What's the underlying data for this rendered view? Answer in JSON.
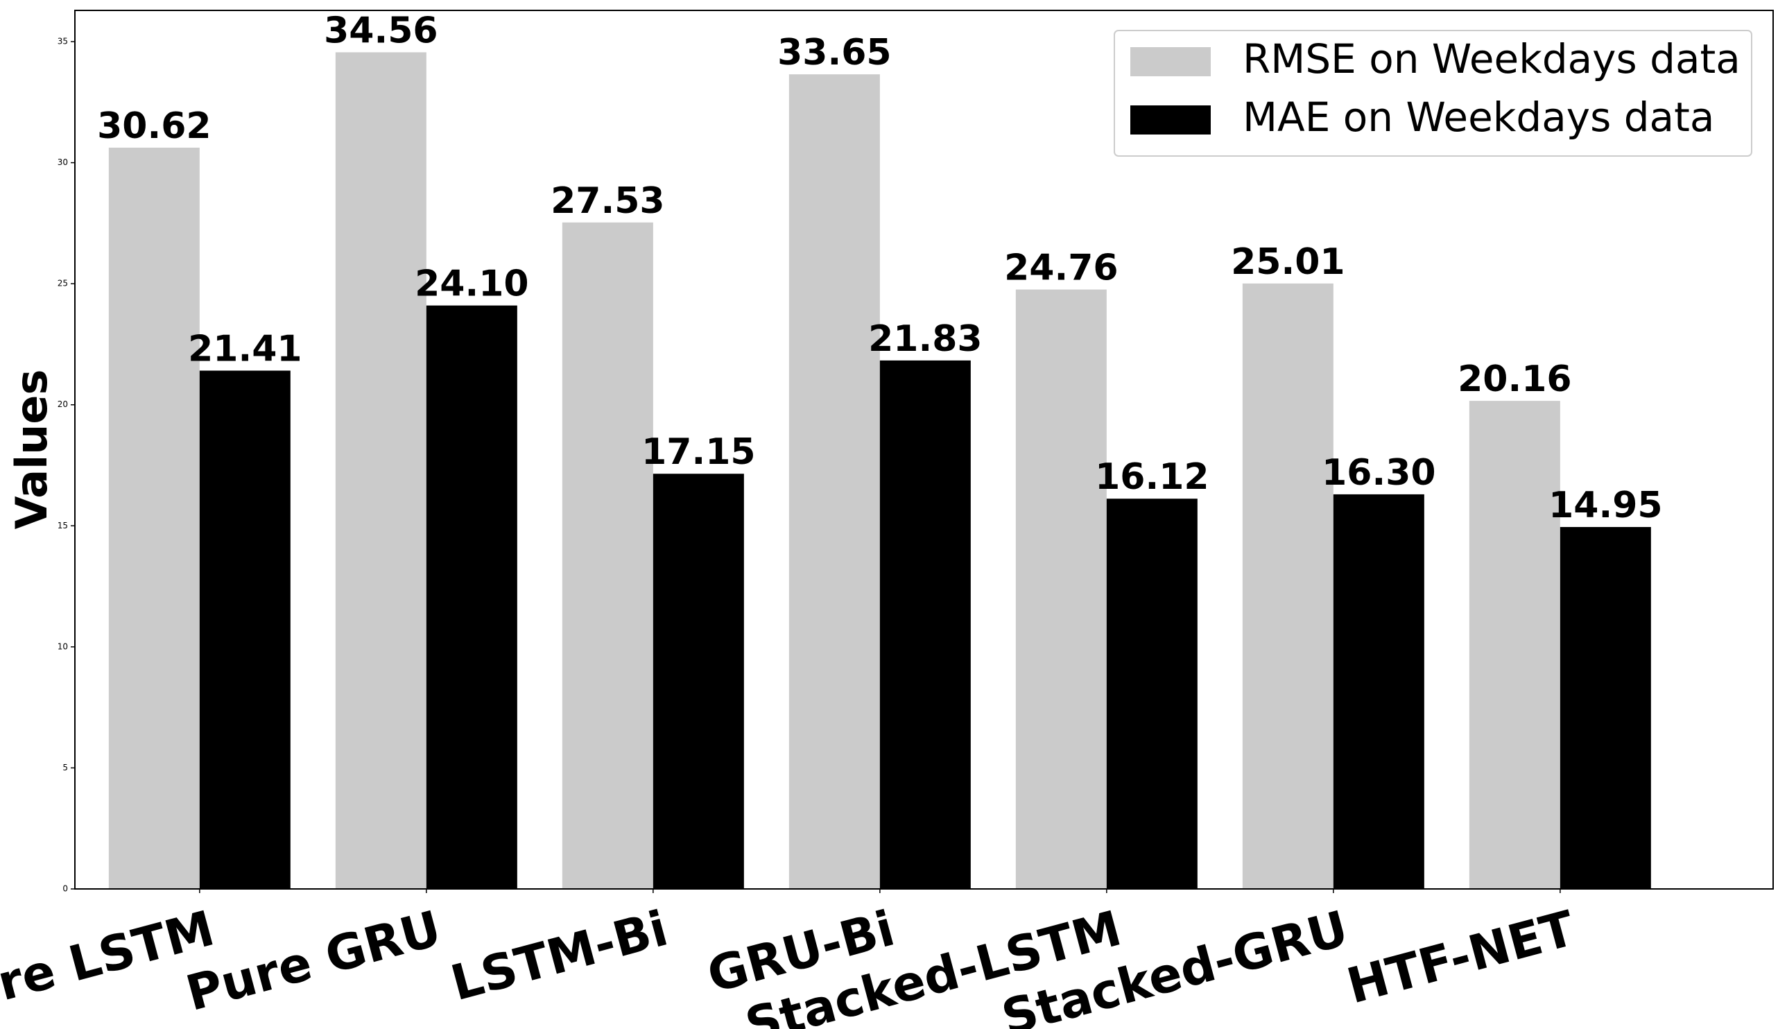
{
  "chart_data": {
    "type": "bar",
    "y_label": "Values",
    "categories": [
      "Pure LSTM",
      "Pure GRU",
      "LSTM-Bi",
      "GRU-Bi",
      "Stacked-LSTM",
      "Stacked-GRU",
      "HTF-NET"
    ],
    "series": [
      {
        "name": "RMSE on Weekdays data",
        "color": "#cbcbcb",
        "values": [
          30.62,
          34.56,
          27.53,
          33.65,
          24.76,
          25.01,
          20.16
        ],
        "value_labels": [
          "30.62",
          "34.56",
          "27.53",
          "33.65",
          "24.76",
          "25.01",
          "20.16"
        ]
      },
      {
        "name": "MAE on Weekdays data",
        "color": "#000000",
        "values": [
          21.41,
          24.1,
          17.15,
          21.83,
          16.12,
          16.3,
          14.95
        ],
        "value_labels": [
          "21.41",
          "24.10",
          "17.15",
          "21.83",
          "16.12",
          "16.30",
          "14.95"
        ]
      }
    ],
    "ylim": [
      0,
      36.29
    ],
    "yticks": [
      0,
      5,
      10,
      15,
      20,
      25,
      30,
      35
    ],
    "legend": "upper right"
  }
}
